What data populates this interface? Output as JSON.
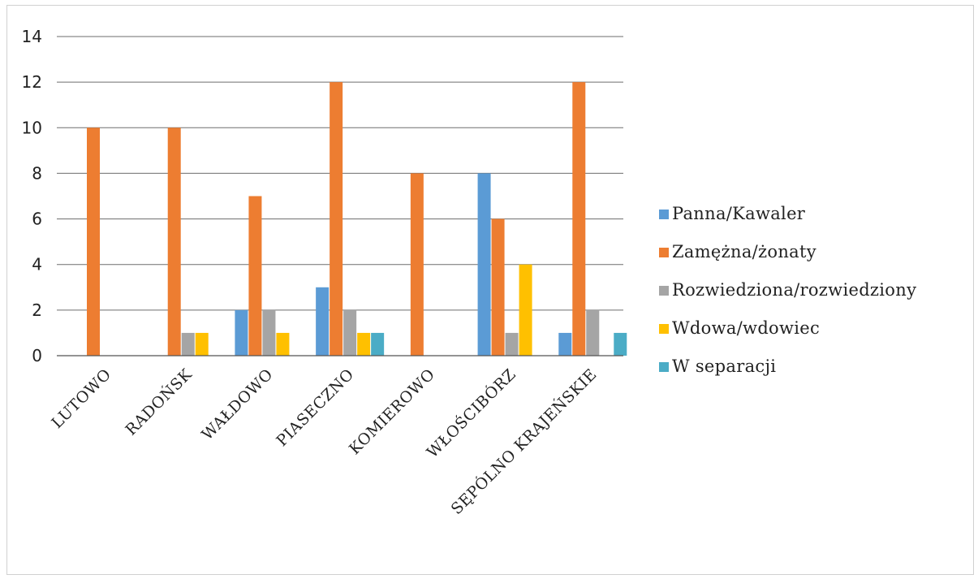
{
  "chart_data": {
    "type": "bar",
    "title": "",
    "xlabel": "",
    "ylabel": "",
    "ylim": [
      0,
      14
    ],
    "yticks": [
      0,
      2,
      4,
      6,
      8,
      10,
      12,
      14
    ],
    "grid": true,
    "legend_position": "right",
    "categories": [
      "LUTOWO",
      "RADOŃSK",
      "WAŁDOWO",
      "PIASECZNO",
      "KOMIEROWO",
      "WŁOŚCIBÓRZ",
      "SĘPÓLNO KRAJEŃSKIE"
    ],
    "series": [
      {
        "name": "Panna/Kawaler",
        "color": "#5b9bd5",
        "values": [
          0,
          0,
          2,
          3,
          0,
          8,
          1
        ]
      },
      {
        "name": "Zamężna/żonaty",
        "color": "#ed7d31",
        "values": [
          10,
          10,
          7,
          12,
          8,
          6,
          12
        ]
      },
      {
        "name": "Rozwiedziona/rozwiedziony",
        "color": "#a5a5a5",
        "values": [
          0,
          1,
          2,
          2,
          0,
          1,
          2
        ]
      },
      {
        "name": "Wdowa/wdowiec",
        "color": "#ffc000",
        "values": [
          0,
          1,
          1,
          1,
          0,
          4,
          0
        ]
      },
      {
        "name": "W separacji",
        "color": "#4bacc6",
        "values": [
          0,
          0,
          0,
          1,
          0,
          0,
          1
        ]
      }
    ]
  }
}
